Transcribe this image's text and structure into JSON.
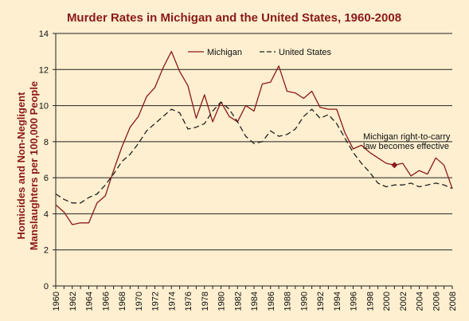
{
  "chart_data": {
    "type": "line",
    "title": "Murder Rates in Michigan and the United States, 1960-2008",
    "ylabel_lines": [
      "Homicides and Non-Negligent",
      "Manslaughters per 100,000 People"
    ],
    "xlabel": "",
    "x": [
      1960,
      1961,
      1962,
      1963,
      1964,
      1965,
      1966,
      1967,
      1968,
      1969,
      1970,
      1971,
      1972,
      1973,
      1974,
      1975,
      1976,
      1977,
      1978,
      1979,
      1980,
      1981,
      1982,
      1983,
      1984,
      1985,
      1986,
      1987,
      1988,
      1989,
      1990,
      1991,
      1992,
      1993,
      1994,
      1995,
      1996,
      1997,
      1998,
      1999,
      2000,
      2001,
      2002,
      2003,
      2004,
      2005,
      2006,
      2007,
      2008
    ],
    "xlim": [
      1960,
      2008
    ],
    "x_ticks": [
      1960,
      1962,
      1964,
      1966,
      1968,
      1970,
      1972,
      1974,
      1976,
      1978,
      1980,
      1982,
      1984,
      1986,
      1988,
      1990,
      1992,
      1994,
      1996,
      1998,
      2000,
      2002,
      2004,
      2006,
      2008
    ],
    "ylim": [
      0,
      14
    ],
    "y_ticks": [
      0,
      2,
      4,
      6,
      8,
      10,
      12,
      14
    ],
    "grid": "horizontal",
    "legend_position": "top",
    "series": [
      {
        "name": "Michigan",
        "color": "#8b1a1a",
        "style": "solid",
        "values": [
          4.5,
          4.1,
          3.4,
          3.5,
          3.5,
          4.6,
          5.0,
          6.4,
          7.7,
          8.8,
          9.4,
          10.5,
          11.0,
          12.1,
          13.0,
          11.9,
          11.1,
          9.3,
          10.6,
          9.1,
          10.2,
          9.4,
          9.1,
          10.0,
          9.7,
          11.2,
          11.3,
          12.2,
          10.8,
          10.7,
          10.4,
          10.8,
          9.9,
          9.8,
          9.8,
          8.5,
          7.6,
          7.8,
          7.4,
          7.1,
          6.8,
          6.7,
          6.8,
          6.1,
          6.4,
          6.2,
          7.1,
          6.7,
          5.4
        ]
      },
      {
        "name": "United States",
        "color": "#222222",
        "style": "dashed",
        "values": [
          5.1,
          4.8,
          4.6,
          4.6,
          4.9,
          5.1,
          5.6,
          6.2,
          6.9,
          7.3,
          7.9,
          8.6,
          9.0,
          9.4,
          9.8,
          9.6,
          8.7,
          8.8,
          9.0,
          9.7,
          10.2,
          9.8,
          9.1,
          8.3,
          7.9,
          8.0,
          8.6,
          8.3,
          8.4,
          8.7,
          9.4,
          9.8,
          9.3,
          9.5,
          9.0,
          8.2,
          7.4,
          6.8,
          6.3,
          5.7,
          5.5,
          5.6,
          5.6,
          5.7,
          5.5,
          5.6,
          5.7,
          5.6,
          5.4
        ]
      }
    ],
    "annotation": {
      "lines": [
        "Michigan right-to-carry",
        "law becomes effective"
      ],
      "x": 2001,
      "y": 6.7,
      "marker_color": "#8b1a1a"
    },
    "style": {
      "background": "#fdefcf",
      "plot_background": "#fdefcf",
      "grid_color": "#222222"
    }
  }
}
